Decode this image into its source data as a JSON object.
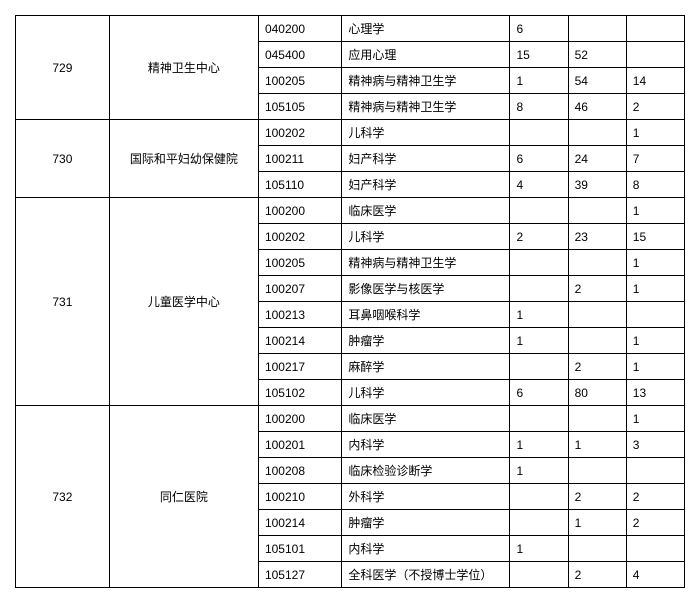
{
  "groups": [
    {
      "id": "729",
      "dept": "精神卫生中心",
      "rows": [
        {
          "code": "040200",
          "name": "心理学",
          "c1": "6",
          "c2": "",
          "c3": ""
        },
        {
          "code": "045400",
          "name": "应用心理",
          "c1": "15",
          "c2": "52",
          "c3": ""
        },
        {
          "code": "100205",
          "name": "精神病与精神卫生学",
          "c1": "1",
          "c2": "54",
          "c3": "14"
        },
        {
          "code": "105105",
          "name": "精神病与精神卫生学",
          "c1": "8",
          "c2": "46",
          "c3": "2"
        }
      ]
    },
    {
      "id": "730",
      "dept": "国际和平妇幼保健院",
      "rows": [
        {
          "code": "100202",
          "name": "儿科学",
          "c1": "",
          "c2": "",
          "c3": "1"
        },
        {
          "code": "100211",
          "name": "妇产科学",
          "c1": "6",
          "c2": "24",
          "c3": "7"
        },
        {
          "code": "105110",
          "name": "妇产科学",
          "c1": "4",
          "c2": "39",
          "c3": "8"
        }
      ]
    },
    {
      "id": "731",
      "dept": "儿童医学中心",
      "rows": [
        {
          "code": "100200",
          "name": "临床医学",
          "c1": "",
          "c2": "",
          "c3": "1"
        },
        {
          "code": "100202",
          "name": "儿科学",
          "c1": "2",
          "c2": "23",
          "c3": "15"
        },
        {
          "code": "100205",
          "name": "精神病与精神卫生学",
          "c1": "",
          "c2": "",
          "c3": "1"
        },
        {
          "code": "100207",
          "name": "影像医学与核医学",
          "c1": "",
          "c2": "2",
          "c3": "1"
        },
        {
          "code": "100213",
          "name": "耳鼻咽喉科学",
          "c1": "1",
          "c2": "",
          "c3": ""
        },
        {
          "code": "100214",
          "name": "肿瘤学",
          "c1": "1",
          "c2": "",
          "c3": "1"
        },
        {
          "code": "100217",
          "name": "麻醉学",
          "c1": "",
          "c2": "2",
          "c3": "1"
        },
        {
          "code": "105102",
          "name": "儿科学",
          "c1": "6",
          "c2": "80",
          "c3": "13"
        }
      ]
    },
    {
      "id": "732",
      "dept": "同仁医院",
      "rows": [
        {
          "code": "100200",
          "name": "临床医学",
          "c1": "",
          "c2": "",
          "c3": "1"
        },
        {
          "code": "100201",
          "name": "内科学",
          "c1": "1",
          "c2": "1",
          "c3": "3"
        },
        {
          "code": "100208",
          "name": "临床检验诊断学",
          "c1": "1",
          "c2": "",
          "c3": ""
        },
        {
          "code": "100210",
          "name": "外科学",
          "c1": "",
          "c2": "2",
          "c3": "2"
        },
        {
          "code": "100214",
          "name": "肿瘤学",
          "c1": "",
          "c2": "1",
          "c3": "2"
        },
        {
          "code": "105101",
          "name": "内科学",
          "c1": "1",
          "c2": "",
          "c3": ""
        },
        {
          "code": "105127",
          "name": "全科医学（不授博士学位）",
          "c1": "",
          "c2": "2",
          "c3": "4"
        }
      ]
    }
  ]
}
